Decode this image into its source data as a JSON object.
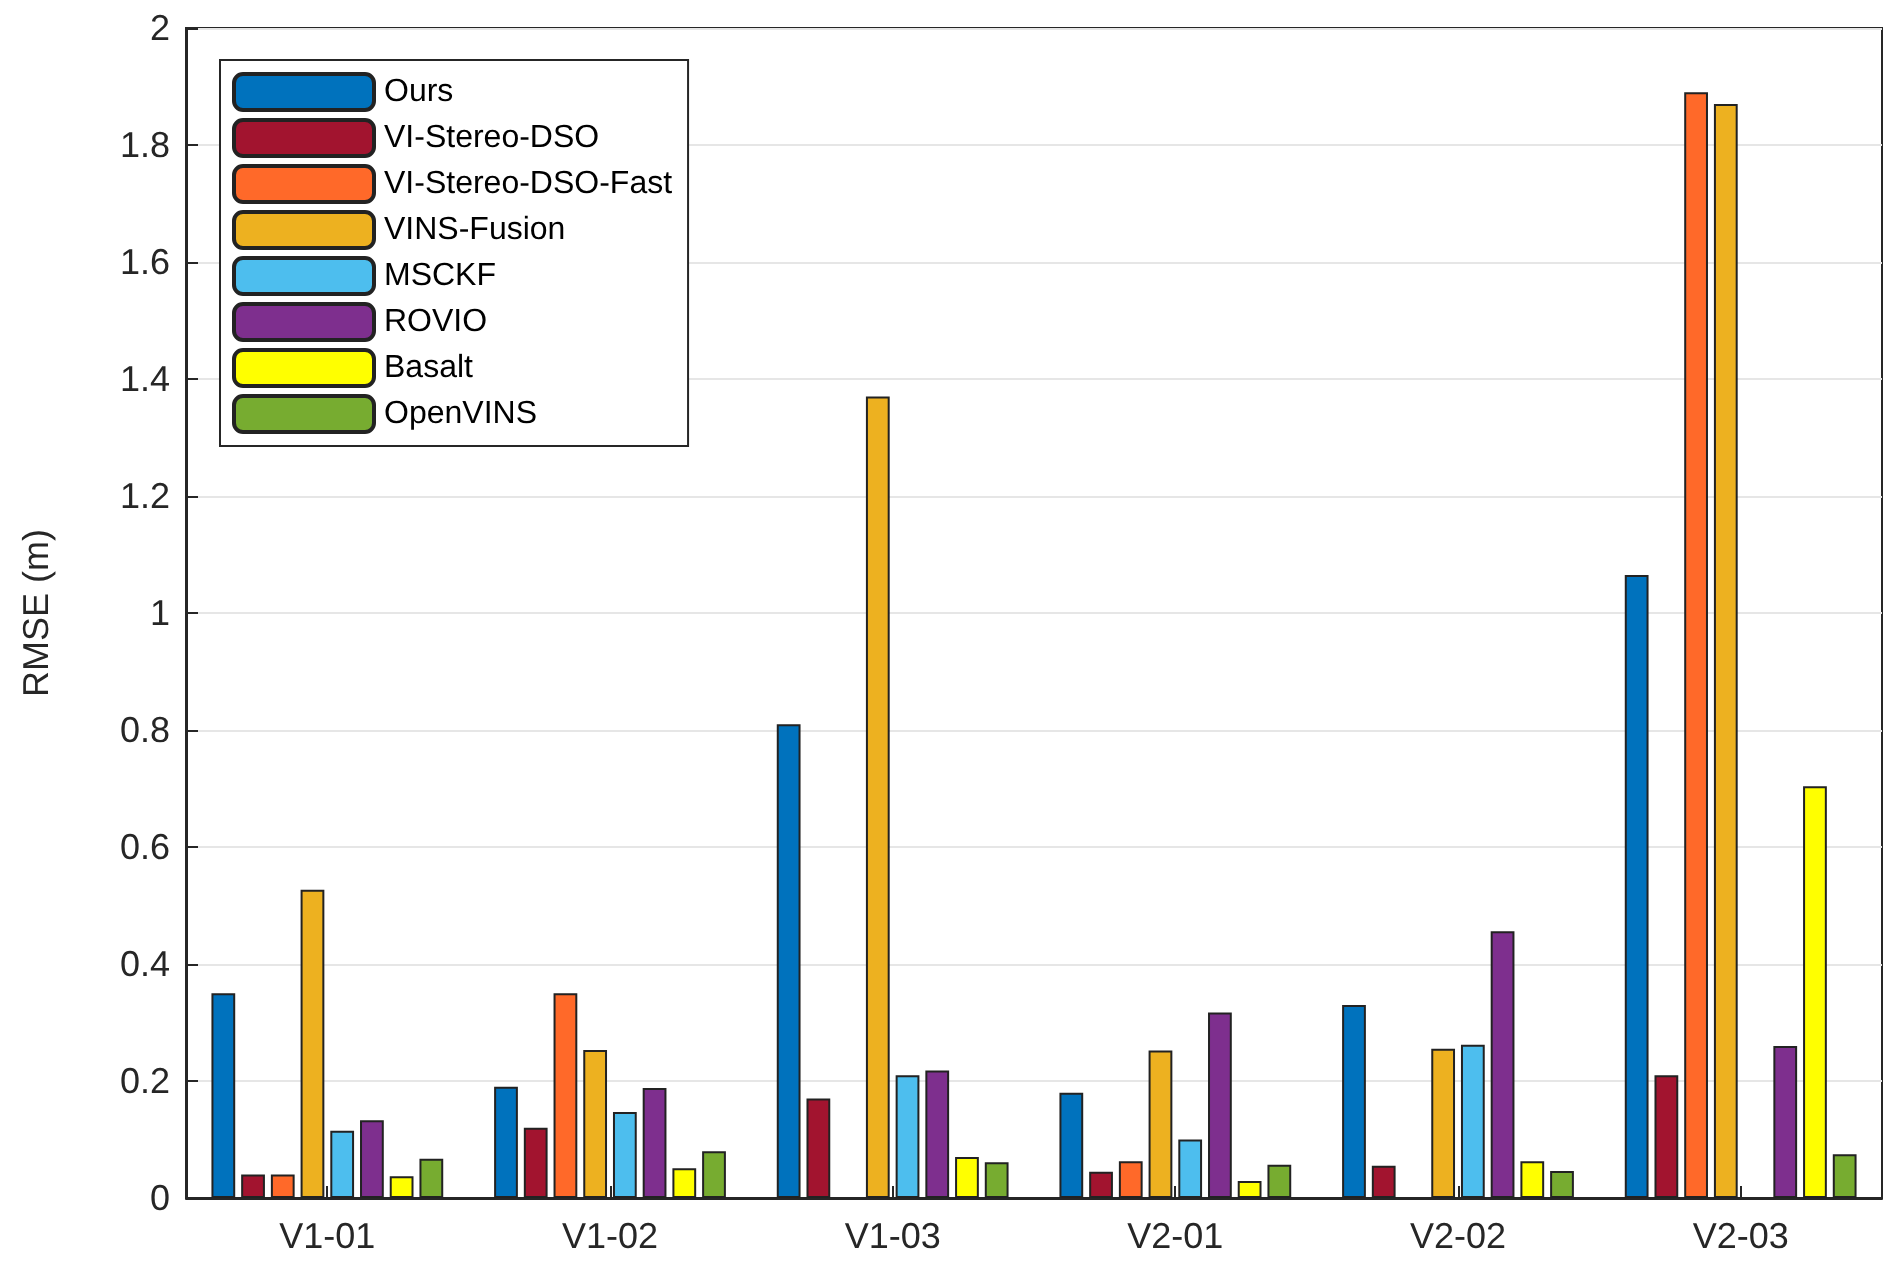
{
  "chart_data": {
    "type": "bar",
    "ylabel": "RMSE (m)",
    "categories": [
      "V1-01",
      "V1-02",
      "V1-03",
      "V2-01",
      "V2-02",
      "V2-03"
    ],
    "series": [
      {
        "name": "Ours",
        "color": "#0072bd",
        "values": [
          0.35,
          0.19,
          0.81,
          0.18,
          0.33,
          1.065
        ]
      },
      {
        "name": "VI-Stereo-DSO",
        "color": "#a2142f",
        "values": [
          0.04,
          0.12,
          0.17,
          0.045,
          0.055,
          0.21
        ]
      },
      {
        "name": "VI-Stereo-DSO-Fast",
        "color": "#ff6929",
        "values": [
          0.04,
          0.35,
          null,
          0.063,
          null,
          1.89
        ]
      },
      {
        "name": "VINS-Fusion",
        "color": "#edb120",
        "values": [
          0.527,
          0.253,
          1.37,
          0.252,
          0.255,
          1.87
        ]
      },
      {
        "name": "MSCKF",
        "color": "#4dbeee",
        "values": [
          0.115,
          0.147,
          0.21,
          0.1,
          0.262,
          null
        ]
      },
      {
        "name": "ROVIO",
        "color": "#7e2f8e",
        "values": [
          0.133,
          0.188,
          0.218,
          0.317,
          0.456,
          0.26
        ]
      },
      {
        "name": "Basalt",
        "color": "#ffff00",
        "values": [
          0.037,
          0.051,
          0.07,
          0.029,
          0.063,
          0.704
        ]
      },
      {
        "name": "OpenVINS",
        "color": "#77ac30",
        "values": [
          0.067,
          0.08,
          0.061,
          0.057,
          0.046,
          0.075
        ]
      }
    ],
    "ylim": [
      0,
      2
    ],
    "yticks": [
      0,
      0.2,
      0.4,
      0.6,
      0.8,
      1,
      1.2,
      1.4,
      1.6,
      1.8,
      2
    ],
    "grid": "y",
    "legend": "top left"
  }
}
